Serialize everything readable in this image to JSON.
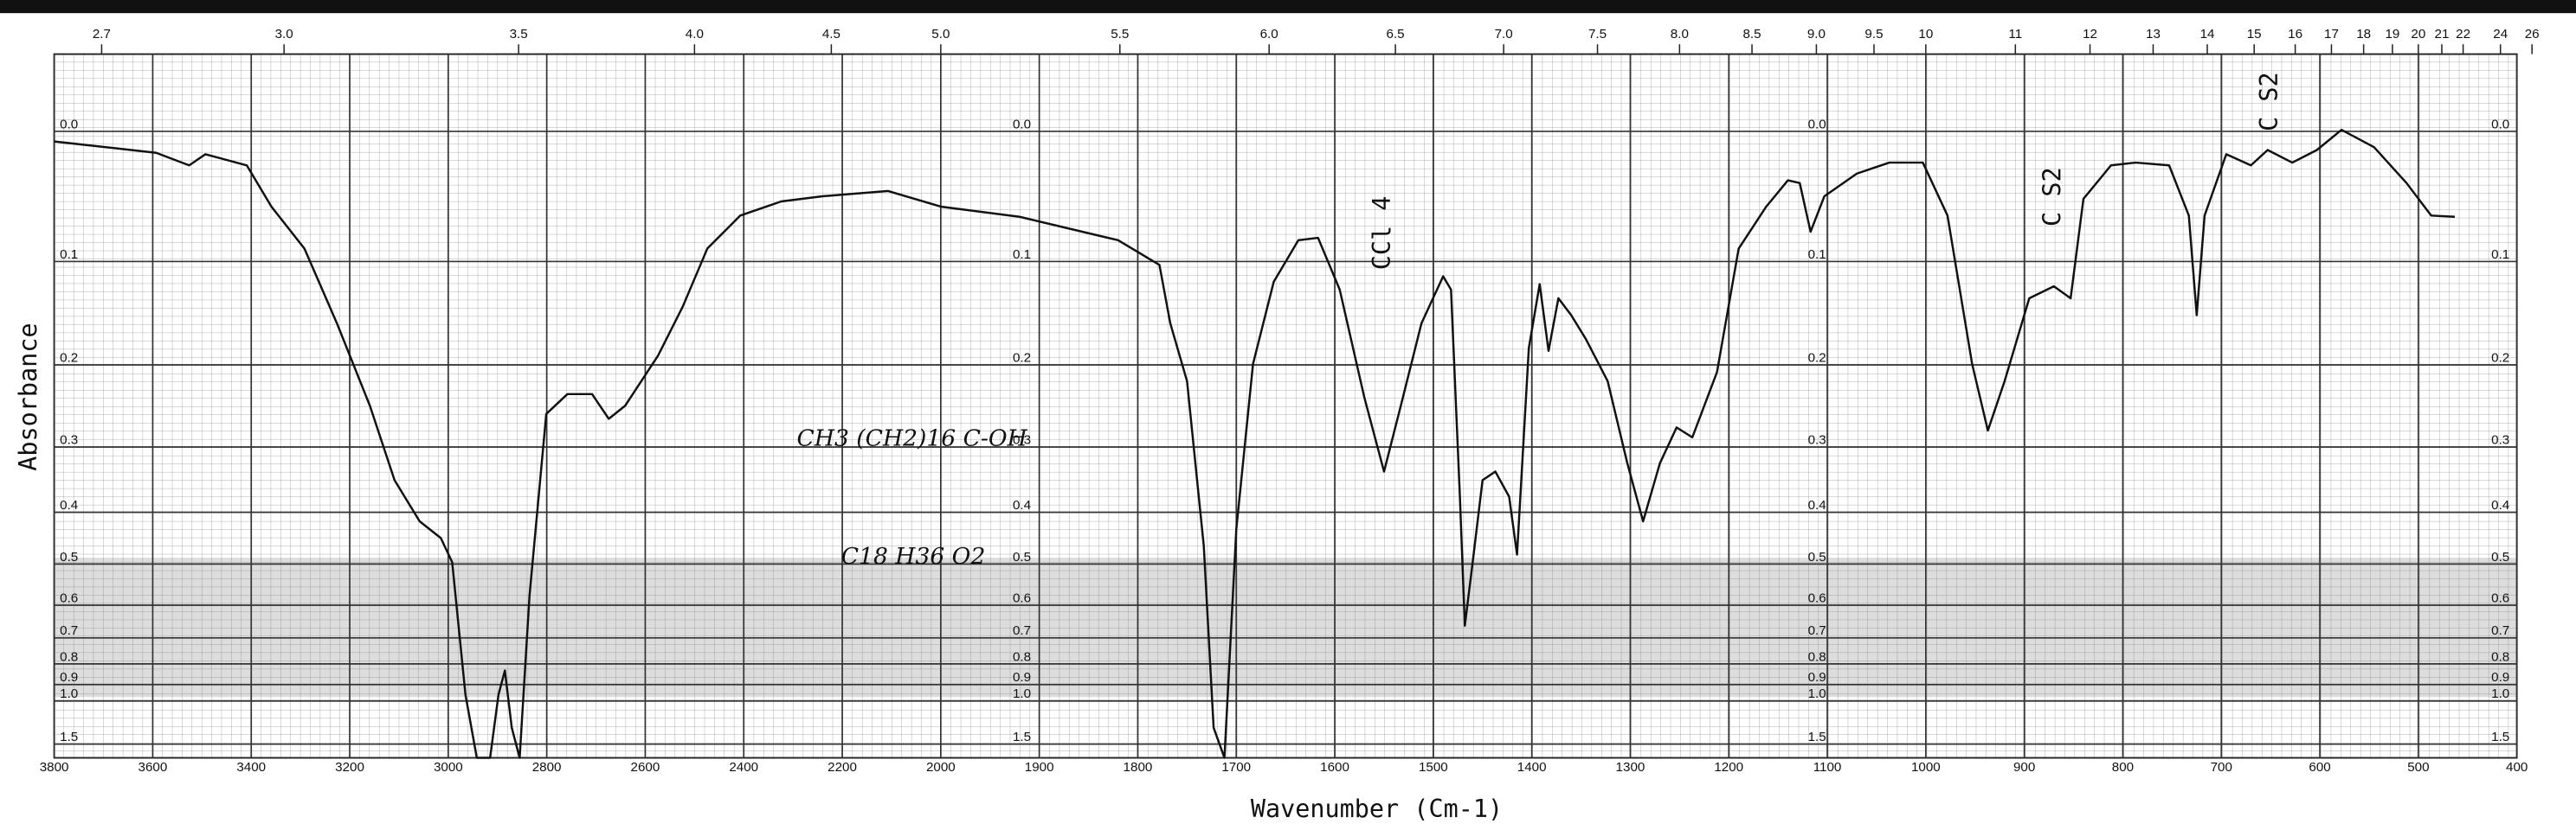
{
  "chart_data": {
    "type": "line",
    "x_label": "Wavenumber (Cm-1)",
    "y_label": "Absorbance",
    "annotations": [
      "CCl 4",
      "C S2",
      "C S2",
      "CH3 (CH2)16 C-OH",
      "C18 H36 O2"
    ],
    "color": "#111111",
    "grid": true,
    "y_scale": "absorbance",
    "xlim": [
      3800,
      400
    ],
    "ylim": [
      -0.05,
      2.0
    ],
    "xticks": [
      3800,
      3600,
      3400,
      3200,
      3000,
      2800,
      2600,
      2400,
      2200,
      2000,
      1900,
      1800,
      1700,
      1600,
      1500,
      1400,
      1300,
      1200,
      1100,
      1000,
      900,
      800,
      700,
      600,
      500,
      400
    ],
    "x2ticks": [
      2.7,
      {
        "value": 3,
        "label": "3.0"
      },
      3.5,
      {
        "value": 4,
        "label": "4.0"
      },
      4.5,
      {
        "value": 5,
        "label": "5.0"
      },
      5.5,
      {
        "value": 6,
        "label": "6.0"
      },
      6.5,
      {
        "value": 7,
        "label": "7.0"
      },
      7.5,
      {
        "value": 8,
        "label": "8.0"
      },
      8.5,
      {
        "value": 9,
        "label": "9.0"
      },
      9.5,
      10,
      11,
      12,
      13,
      14,
      15,
      16,
      17,
      18,
      19,
      20,
      21,
      22,
      24,
      26
    ],
    "yticks": [
      {
        "value": 0,
        "label": "0.0"
      },
      0.1,
      0.2,
      0.3,
      0.4,
      0.5,
      0.6,
      0.7,
      0.8,
      0.9,
      {
        "value": 1,
        "label": "1.0"
      },
      1.5
    ],
    "x": [
      3800,
      3593,
      3526,
      3493,
      3409,
      3359,
      3292,
      3226,
      3159,
      3109,
      3058,
      3015,
      2992,
      2965,
      2942,
      2915,
      2898,
      2885,
      2871,
      2855,
      2835,
      2801,
      2758,
      2708,
      2674,
      2641,
      2574,
      2524,
      2474,
      2407,
      2324,
      2240,
      2107,
      2000,
      1920,
      1820,
      1778,
      1767,
      1750,
      1733,
      1723,
      1712,
      1700,
      1683,
      1662,
      1637,
      1617,
      1595,
      1570,
      1550,
      1533,
      1512,
      1490,
      1482,
      1473,
      1468,
      1460,
      1450,
      1437,
      1423,
      1415,
      1403,
      1392,
      1383,
      1373,
      1360,
      1345,
      1323,
      1303,
      1287,
      1270,
      1253,
      1237,
      1212,
      1190,
      1162,
      1140,
      1128,
      1117,
      1103,
      1070,
      1037,
      1003,
      978,
      953,
      937,
      920,
      895,
      870,
      853,
      840,
      812,
      787,
      753,
      733,
      725,
      717,
      695,
      670,
      653,
      628,
      603,
      578,
      545,
      512,
      487,
      463
    ],
    "values": [
      0.007,
      0.015,
      0.024,
      0.016,
      0.024,
      0.055,
      0.089,
      0.157,
      0.247,
      0.348,
      0.416,
      0.447,
      0.496,
      0.96,
      2.0,
      2.0,
      0.96,
      0.83,
      1.24,
      2.0,
      0.575,
      0.257,
      0.233,
      0.233,
      0.263,
      0.247,
      0.19,
      0.141,
      0.089,
      0.062,
      0.051,
      0.047,
      0.043,
      0.055,
      0.063,
      0.082,
      0.103,
      0.157,
      0.218,
      0.462,
      1.24,
      2.0,
      0.431,
      0.199,
      0.118,
      0.082,
      0.08,
      0.125,
      0.237,
      0.335,
      0.247,
      0.157,
      0.113,
      0.125,
      0.374,
      0.66,
      0.496,
      0.348,
      0.335,
      0.374,
      0.48,
      0.182,
      0.12,
      0.185,
      0.133,
      0.149,
      0.173,
      0.218,
      0.323,
      0.416,
      0.323,
      0.274,
      0.287,
      0.208,
      0.089,
      0.055,
      0.035,
      0.037,
      0.075,
      0.047,
      0.03,
      0.022,
      0.022,
      0.062,
      0.199,
      0.278,
      0.218,
      0.133,
      0.122,
      0.133,
      0.049,
      0.024,
      0.022,
      0.024,
      0.062,
      0.149,
      0.062,
      0.016,
      0.024,
      0.013,
      0.022,
      0.013,
      -0.001,
      0.011,
      0.037,
      0.062,
      0.063
    ]
  }
}
